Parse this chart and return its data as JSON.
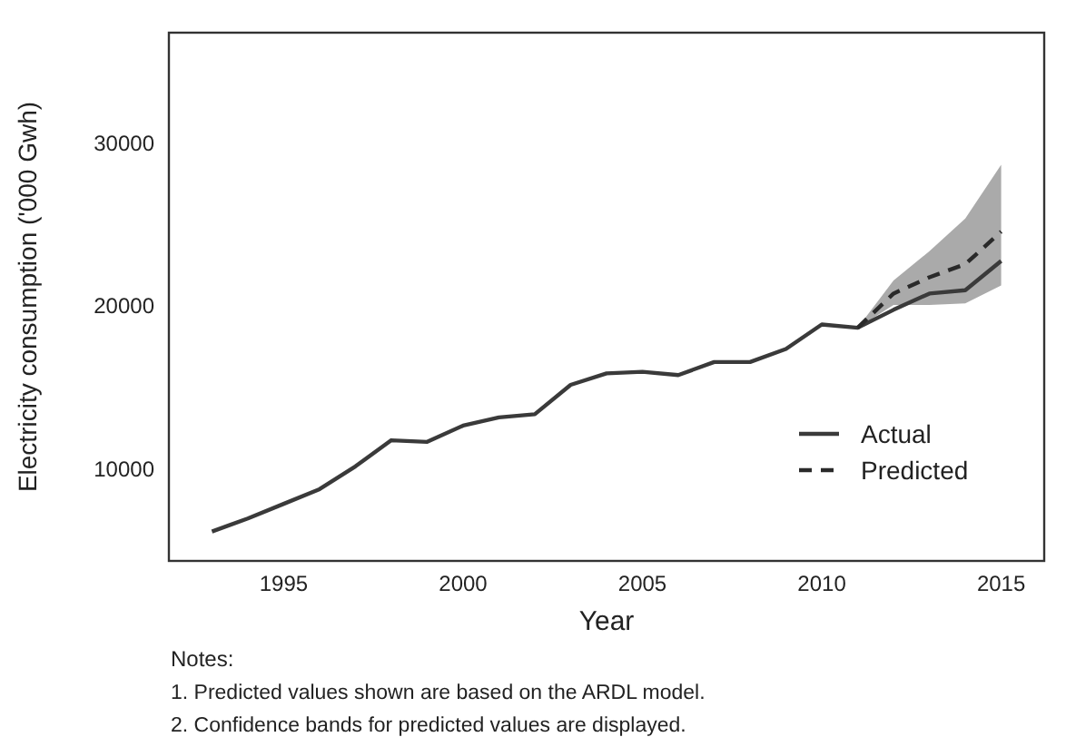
{
  "chart_data": {
    "type": "line",
    "xlabel": "Year",
    "ylabel": "Electricity consumption ('000 Gwh)",
    "xlim": [
      1991.8,
      2016.2
    ],
    "xticks": [
      1995,
      2000,
      2005,
      2010,
      2015
    ],
    "ylim": [
      4400,
      36800
    ],
    "yticks": [
      10000,
      20000,
      30000
    ],
    "grid": false,
    "legend": "bottom right",
    "series": [
      {
        "name": "Actual",
        "color": "#3a3a3a",
        "line_style": "solid",
        "x": [
          1993,
          1994,
          1995,
          1996,
          1997,
          1998,
          1999,
          2000,
          2001,
          2002,
          2003,
          2004,
          2005,
          2006,
          2007,
          2008,
          2009,
          2010,
          2011,
          2012,
          2013,
          2014,
          2015
        ],
        "values": [
          6200,
          7000,
          7900,
          8800,
          10200,
          11800,
          11700,
          12700,
          13200,
          13400,
          15200,
          15900,
          16000,
          15800,
          16600,
          16600,
          17400,
          18900,
          18700,
          19800,
          20800,
          21000,
          22800
        ]
      },
      {
        "name": "Predicted",
        "color": "#2a2a2a",
        "line_style": "dashed",
        "x": [
          2011,
          2012,
          2013,
          2014,
          2015
        ],
        "values": [
          18700,
          20800,
          21800,
          22600,
          24600
        ],
        "lower": [
          18700,
          20100,
          20100,
          20200,
          21300
        ],
        "upper": [
          18700,
          21600,
          23400,
          25400,
          28700
        ]
      }
    ],
    "annotations": [
      "Notes:",
      "1. Predicted values shown are based on the ARDL model.",
      "2. Confidence bands for predicted values are displayed."
    ]
  }
}
